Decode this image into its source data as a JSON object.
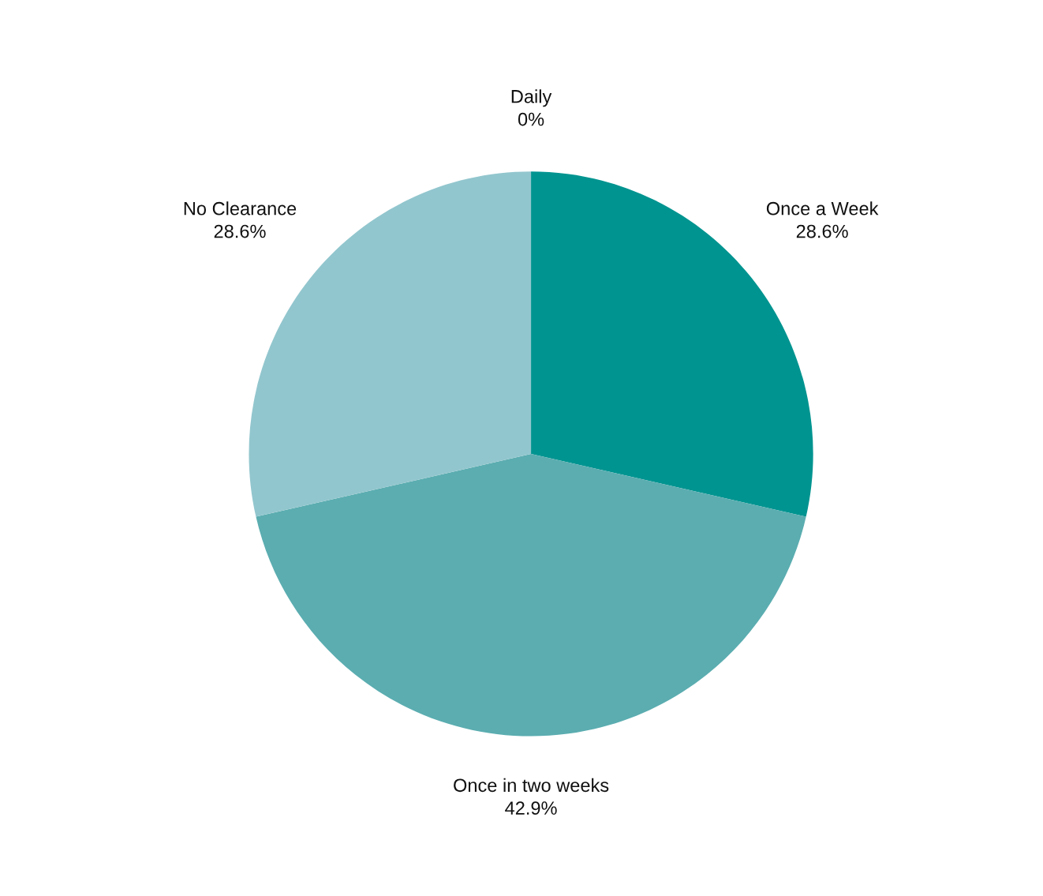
{
  "chart_data": {
    "type": "pie",
    "categories": [
      "Daily",
      "Once a Week",
      "Once in two weeks",
      "No Clearance"
    ],
    "values": [
      0,
      28.6,
      42.9,
      28.6
    ],
    "value_labels": [
      "0%",
      "28.6%",
      "42.9%",
      "28.6%"
    ],
    "colors": [
      "#2f6f73",
      "#009490",
      "#5badb0",
      "#92c6ce"
    ],
    "legend": false
  }
}
